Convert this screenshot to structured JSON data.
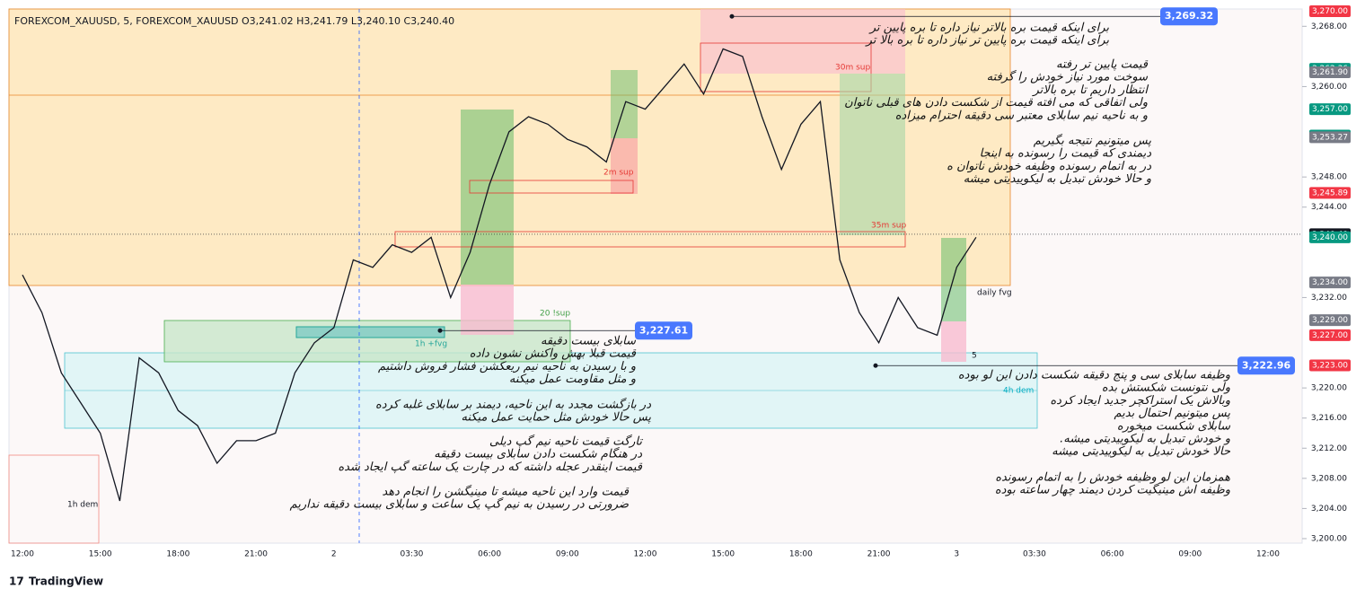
{
  "header": "FOREXCOM_XAUUSD, 5, FOREXCOM_XAUUSD  O3,241.02  H3,241.79  L3,240.10  C3,240.40",
  "brand": "TradingView",
  "chart_data": {
    "type": "line",
    "color": "#131722",
    "categories": [
      "12:00",
      null,
      null,
      null,
      "15:00",
      null,
      null,
      null,
      "18:00",
      null,
      null,
      null,
      "21:00",
      null,
      null,
      null,
      "2",
      null,
      null,
      null,
      "03:30",
      null,
      null,
      null,
      "06:00",
      null,
      null,
      null,
      "09:00",
      null,
      null,
      null,
      "12:00",
      null,
      null,
      null,
      "15:00",
      null,
      null,
      null,
      "18:00",
      null,
      null,
      null,
      "21:00",
      null,
      null,
      null,
      "3",
      null,
      null,
      null,
      "03:30",
      null,
      null,
      null,
      "06:00",
      null,
      null,
      null,
      "09:00",
      null,
      null,
      null,
      "12:00"
    ],
    "values": [
      3235,
      3230,
      3222,
      3218,
      3214,
      3205,
      3224,
      3222,
      3217,
      3215,
      3210,
      3213,
      3213,
      3214,
      3222,
      3226,
      3228,
      3237,
      3236,
      3239,
      3238,
      3240,
      3232,
      3238,
      3247,
      3254,
      3256,
      3255,
      3253,
      3252,
      3250,
      3258,
      3257,
      3260,
      3263,
      3259,
      3265,
      3264,
      3256,
      3249,
      3255,
      3258,
      3237,
      3230,
      3226,
      3232,
      3228,
      3227,
      3236,
      3240,
      null,
      null,
      null,
      null,
      null,
      null,
      null,
      null,
      null,
      null,
      null,
      null,
      null,
      null,
      null
    ],
    "ylim": [
      3199.4,
      3270.3
    ],
    "yticks": [
      {
        "value": 3200,
        "label": "3,200.00"
      },
      {
        "value": 3204,
        "label": "3,204.00"
      },
      {
        "value": 3208,
        "label": "3,208.00"
      },
      {
        "value": 3212,
        "label": "3,212.00"
      },
      {
        "value": 3216,
        "label": "3,216.00"
      },
      {
        "value": 3220,
        "label": "3,220.00"
      },
      {
        "value": 3232,
        "label": "3,232.00"
      },
      {
        "value": 3244,
        "label": "3,244.00"
      },
      {
        "value": 3248,
        "label": "3,248.00"
      },
      {
        "value": 3260,
        "label": "3,260.00"
      },
      {
        "value": 3268,
        "label": "3,268.00"
      }
    ],
    "price_labels": [
      {
        "value": 3270,
        "label": "3,270.00",
        "color": "#f23645"
      },
      {
        "value": 3262.36,
        "label": "3,262.36",
        "color": "#089981"
      },
      {
        "value": 3261.9,
        "label": "3,261.90",
        "color": "#787b86"
      },
      {
        "value": 3257,
        "label": "3,257.00",
        "color": "#089981"
      },
      {
        "value": 3253.5,
        "label": "3,253.50",
        "color": "#089981"
      },
      {
        "value": 3253.27,
        "label": "3,253.27",
        "color": "#787b86"
      },
      {
        "value": 3245.89,
        "label": "3,245.89",
        "color": "#f23645"
      },
      {
        "value": 3240.4,
        "label": "3,240.40",
        "color": "#131722"
      },
      {
        "value": 3240,
        "label": "3,240.00",
        "color": "#089981"
      },
      {
        "value": 3240,
        "label": "3,240.00",
        "color": "#089981"
      },
      {
        "value": 3234,
        "label": "3,234.00",
        "color": "#787b86"
      },
      {
        "value": 3229,
        "label": "3,229.00",
        "color": "#787b86"
      },
      {
        "value": 3227,
        "label": "3,227.00",
        "color": "#f23645"
      },
      {
        "value": 3223,
        "label": "3,223.00",
        "color": "#f23645"
      }
    ],
    "callouts": [
      {
        "value": 3269.32,
        "label": "3,269.32"
      },
      {
        "value": 3227.61,
        "label": "3,227.61"
      },
      {
        "value": 3222.96,
        "label": "3,222.96"
      }
    ]
  },
  "zones": [
    "daily fvg",
    "4h dem",
    "20 !sup",
    "1h +fvg",
    "1h dem",
    "2m sup",
    "30m sup",
    "35m sup",
    "5"
  ],
  "notes": [
    [
      "برای اینکه قیمت بره بالاتر نیاز داره تا بره پایین تر",
      "برای اینکه قیمت بره پایین تر نیاز داره تا بره بالا تر"
    ],
    [
      "قیمت پایین تر رفته",
      "سوخت مورد نیاز خودش را گرفته",
      "انتظار داریم تا بره بالاتر",
      "ولی اتفاقی که می افته قیمت از شکست دادن های قبلی ناتوان",
      "و به ناحیه نیم سابلای معتبر سی دقیقه احترام میزاده"
    ],
    [
      "پس میتونیم نتیجه بگیریم",
      "دیمندی که قیمت را رسونده به اینجا",
      "در به اتمام رسونده وظیفه خودش ناتوان ه",
      "و حالا خودش تبدیل به لیکوییدیتی میشه"
    ],
    [
      "سابلای بیست دقیقه",
      "قیمت قبلا بهش واکنش نشون داده",
      "و با رسیدن به ناحیه نیم ریعکشن فشار فروش داشتیم",
      "و مثل مقاومت عمل میکنه"
    ],
    [
      "در بازگشت مجدد به این ناحیه، دیمند بر سابلای غلبه کرده",
      "پس حالا خودش مثل حمایت عمل میکنه"
    ],
    [
      "تارگت قیمت ناحیه نیم گپ دیلی",
      "در هنگام شکست دادن سابلای بیست دقیقه",
      "قیمت اینقدر عجله داشته که در چارت یک ساعته گپ ایجاد شده"
    ],
    [
      "قیمت وارد این ناحیه میشه تا مینیگشن را انجام دهد",
      "ضرورتی در رسیدن به نیم گپ یک ساعت و سابلای بیست دقیقه نداریم"
    ],
    [
      "وظیفه سابلای سی و پنج دقیقه شکست دادن این لو بوده",
      "ولی نتونست شکستش بده",
      "وبالاش یک استراکچر جدید ایجاد کرده",
      "پس میتونیم احتمال بدیم",
      "سابلای شکست میخوره",
      "و خودش تبدیل به لیکوییدیتی میشه.",
      "حالا خودش تبدیل به لیکوییدیتی میشه"
    ],
    [
      "همزمان این لو وظیفه خودش را به اتمام رسونده",
      "وظیفه اش مینیگیت کردن دیمند چهار ساعته بوده"
    ]
  ]
}
